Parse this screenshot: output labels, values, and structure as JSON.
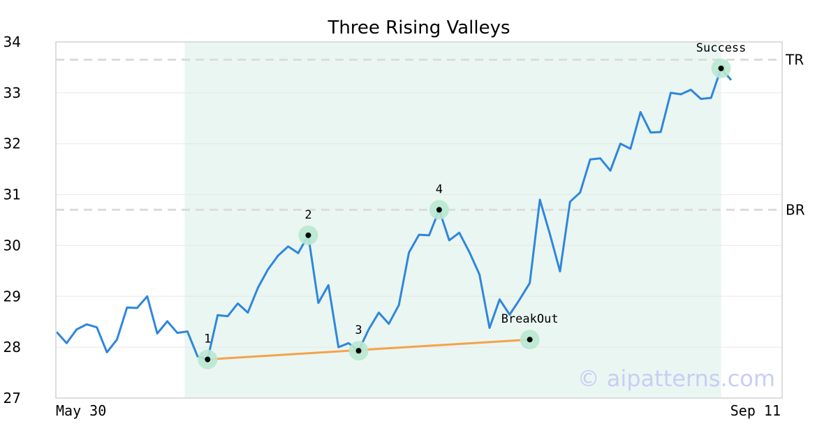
{
  "chart_data": {
    "type": "line",
    "title": "Three Rising Valleys",
    "ylim": [
      27,
      34
    ],
    "yticks": [
      "27",
      "28",
      "29",
      "30",
      "31",
      "32",
      "33",
      "34"
    ],
    "xtick_labels": [
      "May 30",
      "Sep 11"
    ],
    "series": [
      {
        "color": "#2e86de",
        "values": [
          28.3,
          28.08,
          28.35,
          28.45,
          28.39,
          27.9,
          28.15,
          28.78,
          28.77,
          29.0,
          28.27,
          28.51,
          28.28,
          28.31,
          27.82,
          27.76,
          28.63,
          28.61,
          28.86,
          28.68,
          29.17,
          29.53,
          29.8,
          29.98,
          29.85,
          30.2,
          28.87,
          29.22,
          28.0,
          28.08,
          27.93,
          28.35,
          28.68,
          28.46,
          28.83,
          29.86,
          30.21,
          30.2,
          30.7,
          30.1,
          30.25,
          29.87,
          29.43,
          28.38,
          28.94,
          28.64,
          28.94,
          29.26,
          30.9,
          30.22,
          29.49,
          30.86,
          31.04,
          31.69,
          31.71,
          31.47,
          32.0,
          31.9,
          32.62,
          32.22,
          32.23,
          33.0,
          32.97,
          33.06,
          32.88,
          32.9,
          33.48,
          33.25
        ]
      }
    ],
    "pattern_region": {
      "start_index": 13,
      "end_index": 66,
      "color": "#eaf6f1"
    },
    "horizontal_levels": [
      {
        "label": "TR",
        "value": 33.65
      },
      {
        "label": "BR",
        "value": 30.7
      }
    ],
    "pattern_points": [
      {
        "label": "1",
        "index": 15,
        "value": 27.76
      },
      {
        "label": "2",
        "index": 25,
        "value": 30.2
      },
      {
        "label": "3",
        "index": 30,
        "value": 27.93
      },
      {
        "label": "4",
        "index": 38,
        "value": 30.7
      },
      {
        "label": "BreakOut",
        "index": 47,
        "value": 28.15
      },
      {
        "label": "Success",
        "index": 66,
        "value": 33.48
      }
    ],
    "trendline": {
      "color": "#f4a24a",
      "from_point": 0,
      "to_point": 4
    },
    "grid": true
  },
  "watermark": "© aipatterns.com"
}
